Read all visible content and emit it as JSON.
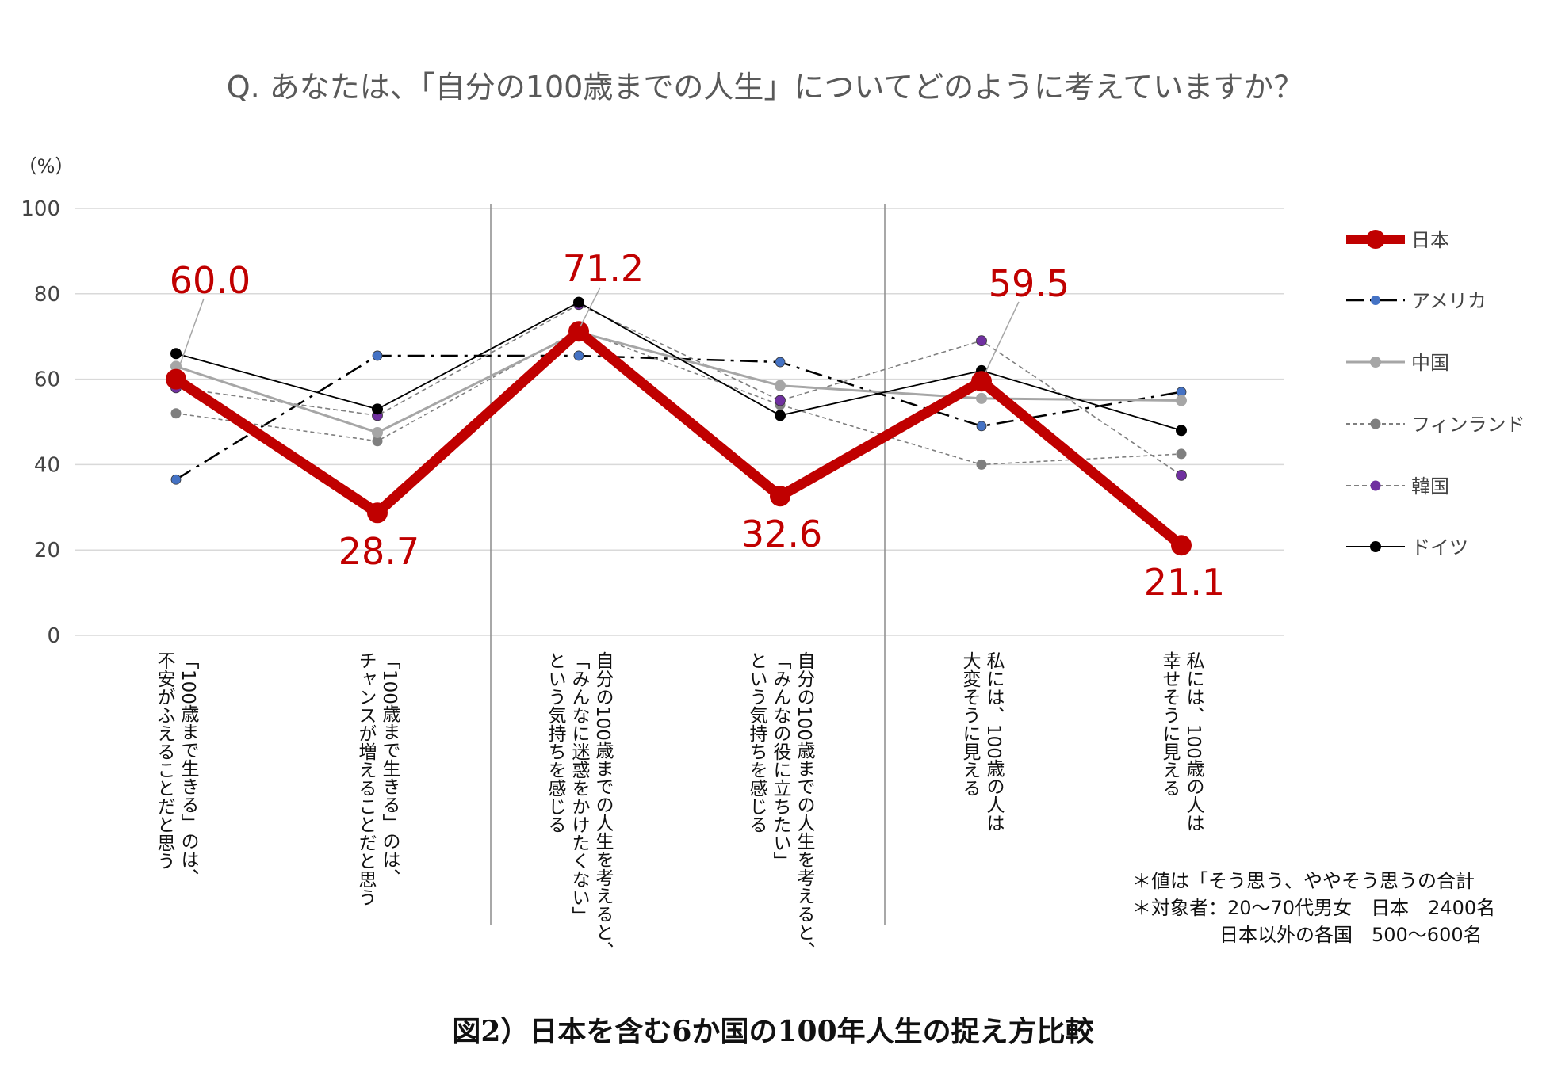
{
  "chart_data": {
    "type": "line",
    "title": "Q. あなたは、「自分の100歳までの人生」についてどのように考えていますか？",
    "ylabel": "（%）",
    "ylim": [
      0,
      100
    ],
    "yticks": [
      0,
      20,
      40,
      60,
      80,
      100
    ],
    "grid": true,
    "legend_position": "right",
    "categories": [
      [
        "「100歳まで生きる」のは、",
        "不安がふえることだと思う"
      ],
      [
        "「100歳まで生きる」のは、",
        "チャンスが増えることだと思う"
      ],
      [
        "自分の100歳までの人生を考えると、",
        "「みんなに迷惑をかけたくない」",
        "という気持ちを感じる"
      ],
      [
        "自分の100歳までの人生を考えると、",
        "「みんなの役に立ちたい」",
        "という気持ちを感じる"
      ],
      [
        "私には、100歳の人は",
        "大変そうに見える"
      ],
      [
        "私には、100歳の人は",
        "幸せそうに見える"
      ]
    ],
    "series": [
      {
        "name": "日本",
        "values": [
          60.0,
          28.7,
          71.2,
          32.6,
          59.5,
          21.1
        ],
        "color": "#c00000",
        "style": "solid-thick"
      },
      {
        "name": "アメリカ",
        "values": [
          36.5,
          65.5,
          65.5,
          64,
          49,
          57
        ],
        "color": "#000000",
        "marker": "#4472c4",
        "style": "dashdot"
      },
      {
        "name": "中国",
        "values": [
          63,
          47.5,
          71,
          58.5,
          55.5,
          55
        ],
        "color": "#a6a6a6",
        "marker": "#a6a6a6",
        "style": "solid-gray"
      },
      {
        "name": "フィンランド",
        "values": [
          52,
          45.5,
          71.5,
          54,
          40,
          42.5
        ],
        "color": "#7f7f7f",
        "marker": "#7f7f7f",
        "style": "dotted"
      },
      {
        "name": "韓国",
        "values": [
          58,
          51.5,
          77.5,
          55,
          69,
          37.5
        ],
        "color": "#7f7f7f",
        "marker": "#7030a0",
        "style": "dashed"
      },
      {
        "name": "ドイツ",
        "values": [
          66,
          53,
          78,
          51.5,
          62,
          48
        ],
        "color": "#000000",
        "marker": "#000000",
        "style": "solid-thin"
      }
    ],
    "data_labels": [
      "60.0",
      "28.7",
      "71.2",
      "32.6",
      "59.5",
      "21.1"
    ]
  },
  "notes": [
    "＊値は「そう思う、ややそう思うの合計",
    "＊対象者：20〜70代男女　日本　2400名",
    "日本以外の各国　500〜600名"
  ],
  "caption": "図2）日本を含む6か国の100年人生の捉え方比較"
}
